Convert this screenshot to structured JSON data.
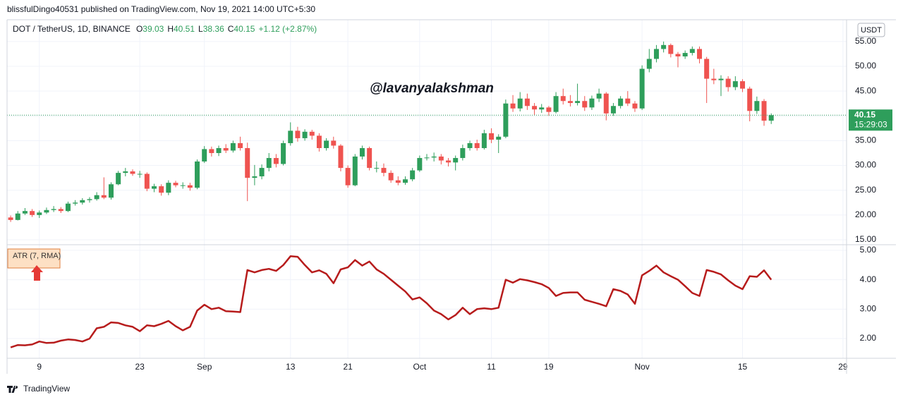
{
  "header": {
    "published": "blissfulDingo40531 published on TradingView.com, Nov 19, 2021 14:00 UTC+5:30"
  },
  "footer": {
    "brand": "TradingView"
  },
  "chart_data": [
    {
      "type": "candlestick",
      "title": "DOT / TetherUS, 1D, BINANCE",
      "ohlc_labels": [
        "O",
        "H",
        "L",
        "C"
      ],
      "change": "+1.12 (+2.87%)",
      "currency": "USDT",
      "countdown": "15:29:03",
      "annotation": "@lavanyalakshman",
      "up_color": "#2e9e5b",
      "down_color": "#ef5350",
      "xlim": [
        -0.5,
        116.5
      ],
      "ylim": [
        14,
        59.4
      ],
      "yticks": [
        {
          "value": 15,
          "label": "15.00"
        },
        {
          "value": 20,
          "label": "20.00"
        },
        {
          "value": 25,
          "label": "25.00"
        },
        {
          "value": 30,
          "label": "30.00"
        },
        {
          "value": 35,
          "label": "35.00"
        },
        {
          "value": 40,
          "label": "40.00"
        },
        {
          "value": 45,
          "label": "45.00"
        },
        {
          "value": 50,
          "label": "50.00"
        },
        {
          "value": 55,
          "label": "55.00"
        }
      ],
      "grid": true,
      "ohlc": [
        [
          19.5,
          19.9,
          18.6,
          19.0
        ],
        [
          19.0,
          20.8,
          18.9,
          20.3
        ],
        [
          20.3,
          21.4,
          20.0,
          20.8
        ],
        [
          20.8,
          21.2,
          19.6,
          20.0
        ],
        [
          20.0,
          20.9,
          19.4,
          20.5
        ],
        [
          20.5,
          21.5,
          20.2,
          21.0
        ],
        [
          21.0,
          21.8,
          20.6,
          21.2
        ],
        [
          21.2,
          21.6,
          20.4,
          20.8
        ],
        [
          20.8,
          22.7,
          20.6,
          22.3
        ],
        [
          22.3,
          23.0,
          21.9,
          22.5
        ],
        [
          22.5,
          23.4,
          22.1,
          23.0
        ],
        [
          23.0,
          23.6,
          22.5,
          23.2
        ],
        [
          23.2,
          24.6,
          22.9,
          24.0
        ],
        [
          24.0,
          27.6,
          23.2,
          23.5
        ],
        [
          23.5,
          26.6,
          23.1,
          26.2
        ],
        [
          26.2,
          28.9,
          26.0,
          28.5
        ],
        [
          28.5,
          29.5,
          27.8,
          28.8
        ],
        [
          28.8,
          29.2,
          27.9,
          28.3
        ],
        [
          28.3,
          28.9,
          27.5,
          28.3
        ],
        [
          28.3,
          28.6,
          24.8,
          25.3
        ],
        [
          25.3,
          26.3,
          24.6,
          25.8
        ],
        [
          25.8,
          26.2,
          23.9,
          24.5
        ],
        [
          24.5,
          27.0,
          24.0,
          26.5
        ],
        [
          26.5,
          26.9,
          25.6,
          26.0
        ],
        [
          26.0,
          26.6,
          25.3,
          26.0
        ],
        [
          26.0,
          26.5,
          24.9,
          25.5
        ],
        [
          25.5,
          31.2,
          25.2,
          30.8
        ],
        [
          30.8,
          33.9,
          30.5,
          33.3
        ],
        [
          33.3,
          33.8,
          31.8,
          32.5
        ],
        [
          32.5,
          34.0,
          31.9,
          33.5
        ],
        [
          33.5,
          34.3,
          32.5,
          33.0
        ],
        [
          33.0,
          35.0,
          32.6,
          34.5
        ],
        [
          34.5,
          35.8,
          33.0,
          33.5
        ],
        [
          33.5,
          34.6,
          22.8,
          27.5
        ],
        [
          27.5,
          30.1,
          26.0,
          27.8
        ],
        [
          27.8,
          30.2,
          27.2,
          29.5
        ],
        [
          29.5,
          32.5,
          28.8,
          31.5
        ],
        [
          31.5,
          32.3,
          29.6,
          30.3
        ],
        [
          30.3,
          35.0,
          30.0,
          34.5
        ],
        [
          34.5,
          38.7,
          34.0,
          37.0
        ],
        [
          37.0,
          37.8,
          34.8,
          35.5
        ],
        [
          35.5,
          37.3,
          35.0,
          36.8
        ],
        [
          36.8,
          37.2,
          35.2,
          36.0
        ],
        [
          36.0,
          36.5,
          32.8,
          33.5
        ],
        [
          33.5,
          35.5,
          33.0,
          35.0
        ],
        [
          35.0,
          35.8,
          33.4,
          34.0
        ],
        [
          34.0,
          34.3,
          28.8,
          29.5
        ],
        [
          29.5,
          30.0,
          25.5,
          26.0
        ],
        [
          26.0,
          32.3,
          25.8,
          31.8
        ],
        [
          31.8,
          34.0,
          31.2,
          33.5
        ],
        [
          33.5,
          33.8,
          29.0,
          29.5
        ],
        [
          29.5,
          30.8,
          28.6,
          29.5
        ],
        [
          29.5,
          30.4,
          27.8,
          28.5
        ],
        [
          28.5,
          29.0,
          26.5,
          27.0
        ],
        [
          27.0,
          27.8,
          26.0,
          26.5
        ],
        [
          26.5,
          27.8,
          26.1,
          27.2
        ],
        [
          27.2,
          29.5,
          26.8,
          29.0
        ],
        [
          29.0,
          32.0,
          28.7,
          31.5
        ],
        [
          31.5,
          32.3,
          31.0,
          31.6
        ],
        [
          31.6,
          32.6,
          30.8,
          31.8
        ],
        [
          31.8,
          32.3,
          30.2,
          31.0
        ],
        [
          31.0,
          31.5,
          29.8,
          30.6
        ],
        [
          30.6,
          32.0,
          29.0,
          31.5
        ],
        [
          31.5,
          34.2,
          31.0,
          33.5
        ],
        [
          33.5,
          35.0,
          33.0,
          34.5
        ],
        [
          34.5,
          35.2,
          33.0,
          33.5
        ],
        [
          33.5,
          37.2,
          33.2,
          36.5
        ],
        [
          36.5,
          37.5,
          34.5,
          35.2
        ],
        [
          35.2,
          36.3,
          32.5,
          35.8
        ],
        [
          35.8,
          43.3,
          35.5,
          42.5
        ],
        [
          42.5,
          44.2,
          40.8,
          41.5
        ],
        [
          41.5,
          44.8,
          40.9,
          43.5
        ],
        [
          43.5,
          44.5,
          41.2,
          42.0
        ],
        [
          42.0,
          42.6,
          40.2,
          41.3
        ],
        [
          41.3,
          42.4,
          40.6,
          41.7
        ],
        [
          41.7,
          42.0,
          40.0,
          40.8
        ],
        [
          40.8,
          44.8,
          40.5,
          44.0
        ],
        [
          44.0,
          45.5,
          42.3,
          43.0
        ],
        [
          43.0,
          44.2,
          41.9,
          42.6
        ],
        [
          42.6,
          46.5,
          42.1,
          43.0
        ],
        [
          43.0,
          44.0,
          41.0,
          41.7
        ],
        [
          41.7,
          44.1,
          41.2,
          43.5
        ],
        [
          43.5,
          45.5,
          42.8,
          44.5
        ],
        [
          44.5,
          44.8,
          39.1,
          40.5
        ],
        [
          40.5,
          42.6,
          40.0,
          42.0
        ],
        [
          42.0,
          44.0,
          41.5,
          43.5
        ],
        [
          43.5,
          45.0,
          42.0,
          42.5
        ],
        [
          42.5,
          43.0,
          40.8,
          41.5
        ],
        [
          41.5,
          50.2,
          41.2,
          49.5
        ],
        [
          49.5,
          53.5,
          48.8,
          51.5
        ],
        [
          51.5,
          54.3,
          50.8,
          53.5
        ],
        [
          53.5,
          55.0,
          52.8,
          54.3
        ],
        [
          54.3,
          54.6,
          51.8,
          52.5
        ],
        [
          52.5,
          52.9,
          49.8,
          52.0
        ],
        [
          52.0,
          53.2,
          51.5,
          52.7
        ],
        [
          52.7,
          54.0,
          52.2,
          53.5
        ],
        [
          53.5,
          54.0,
          50.6,
          51.5
        ],
        [
          51.5,
          51.9,
          42.6,
          47.5
        ],
        [
          47.5,
          49.5,
          46.4,
          47.2
        ],
        [
          47.2,
          48.2,
          44.0,
          47.5
        ],
        [
          47.5,
          48.0,
          44.9,
          45.8
        ],
        [
          45.8,
          48.0,
          45.2,
          47.0
        ],
        [
          47.0,
          47.4,
          44.8,
          45.5
        ],
        [
          45.5,
          45.9,
          38.9,
          41.0
        ],
        [
          41.0,
          43.9,
          40.4,
          43.0
        ],
        [
          43.0,
          43.4,
          38.0,
          39.03
        ],
        [
          39.03,
          40.51,
          38.36,
          40.15
        ]
      ]
    },
    {
      "type": "line",
      "title": "ATR (7, RMA)",
      "color": "#b71c1c",
      "xlim": [
        -0.5,
        116.5
      ],
      "ylim": [
        1.33,
        5.19
      ],
      "yticks": [
        {
          "value": 2,
          "label": "2.00"
        },
        {
          "value": 3,
          "label": "3.00"
        },
        {
          "value": 4,
          "label": "4.00"
        },
        {
          "value": 5,
          "label": "5.00"
        }
      ],
      "xticks": [
        {
          "value": 4,
          "label": "9"
        },
        {
          "value": 18,
          "label": "23"
        },
        {
          "value": 27,
          "label": "Sep"
        },
        {
          "value": 39,
          "label": "13"
        },
        {
          "value": 47,
          "label": "21"
        },
        {
          "value": 57,
          "label": "Oct"
        },
        {
          "value": 67,
          "label": "11"
        },
        {
          "value": 75,
          "label": "19"
        },
        {
          "value": 88,
          "label": "Nov"
        },
        {
          "value": 102,
          "label": "15"
        },
        {
          "value": 116,
          "label": "29"
        }
      ],
      "grid": true,
      "values": [
        1.7,
        1.78,
        1.77,
        1.8,
        1.9,
        1.85,
        1.86,
        1.93,
        1.97,
        1.95,
        1.9,
        2.0,
        2.35,
        2.4,
        2.55,
        2.53,
        2.45,
        2.4,
        2.25,
        2.45,
        2.42,
        2.5,
        2.6,
        2.42,
        2.28,
        2.4,
        2.95,
        3.15,
        3.0,
        3.05,
        2.93,
        2.92,
        2.9,
        4.33,
        4.25,
        4.33,
        4.37,
        4.3,
        4.5,
        4.8,
        4.78,
        4.5,
        4.25,
        4.32,
        4.2,
        3.88,
        4.35,
        4.42,
        4.67,
        4.48,
        4.62,
        4.35,
        4.2,
        4.0,
        3.8,
        3.6,
        3.33,
        3.4,
        3.2,
        2.95,
        2.83,
        2.65,
        2.8,
        3.05,
        2.83,
        3.0,
        3.03,
        3.0,
        3.05,
        4.0,
        3.9,
        4.02,
        3.98,
        3.92,
        3.85,
        3.72,
        3.45,
        3.55,
        3.57,
        3.57,
        3.32,
        3.25,
        3.18,
        3.1,
        3.68,
        3.62,
        3.5,
        3.18,
        4.15,
        4.3,
        4.48,
        4.25,
        4.12,
        4.0,
        3.78,
        3.55,
        3.45,
        4.33,
        4.27,
        4.18,
        3.98,
        3.8,
        3.68,
        4.12,
        4.1,
        4.32,
        4.0
      ]
    }
  ]
}
